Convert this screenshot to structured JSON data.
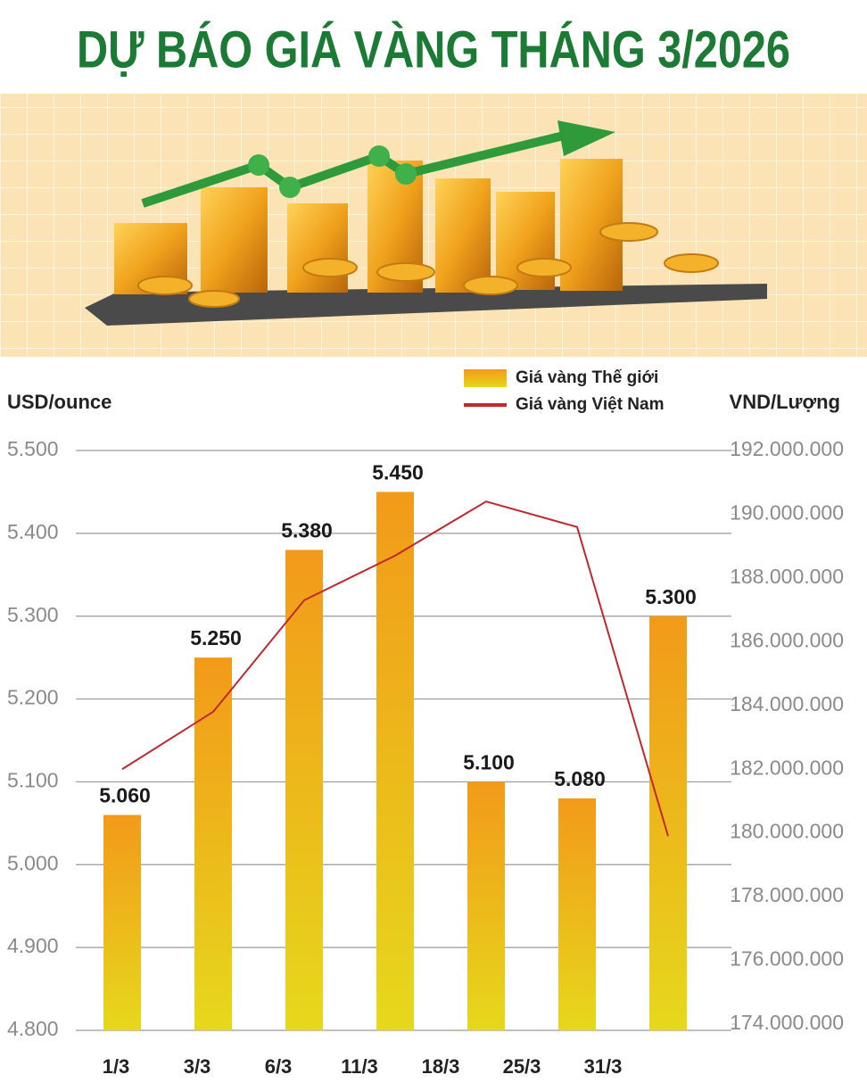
{
  "chart_data": {
    "type": "bar",
    "title": "DỰ BÁO GIÁ VÀNG THÁNG 3/2026",
    "y_axis_label": "USD/ounce",
    "y2_axis_label": "VND/Lượng",
    "categories": [
      "1/3",
      "3/3",
      "6/3",
      "11/3",
      "18/3",
      "25/3",
      "31/3"
    ],
    "series": [
      {
        "name": "Giá vàng Thế giới",
        "type": "bar",
        "color": "#f29a1a",
        "values": [
          5060,
          5250,
          5380,
          5450,
          5100,
          5080,
          5300
        ],
        "value_labels": [
          "5.060",
          "5.250",
          "5.380",
          "5.450",
          "5.100",
          "5.080",
          "5.300"
        ]
      },
      {
        "name": "Giá vàng Việt Nam",
        "type": "line",
        "axis": "y2",
        "color": "#c0282d",
        "values": [
          182000000,
          183800000,
          187300000,
          188700000,
          190400000,
          189600000,
          179900000
        ]
      }
    ],
    "ylim": [
      4800,
      5500
    ],
    "yticks": [
      {
        "value": 4800,
        "label": "4.800"
      },
      {
        "value": 4900,
        "label": "4.900"
      },
      {
        "value": 5000,
        "label": "5.000"
      },
      {
        "value": 5100,
        "label": "5.100"
      },
      {
        "value": 5200,
        "label": "5.200"
      },
      {
        "value": 5300,
        "label": "5.300"
      },
      {
        "value": 5400,
        "label": "5.400"
      },
      {
        "value": 5500,
        "label": "5.500"
      }
    ],
    "y2lim": [
      174000000,
      192000000
    ],
    "y2ticks": [
      {
        "value": 174000000,
        "label": "174.000.000"
      },
      {
        "value": 176000000,
        "label": "176.000.000"
      },
      {
        "value": 178000000,
        "label": "178.000.000"
      },
      {
        "value": 180000000,
        "label": "180.000.000"
      },
      {
        "value": 182000000,
        "label": "182.000.000"
      },
      {
        "value": 184000000,
        "label": "184.000.000"
      },
      {
        "value": 186000000,
        "label": "186.000.000"
      },
      {
        "value": 188000000,
        "label": "188.000.000"
      },
      {
        "value": 190000000,
        "label": "190.000.000"
      },
      {
        "value": 192000000,
        "label": "192.000.000"
      }
    ],
    "grid": true,
    "legend": "top"
  }
}
